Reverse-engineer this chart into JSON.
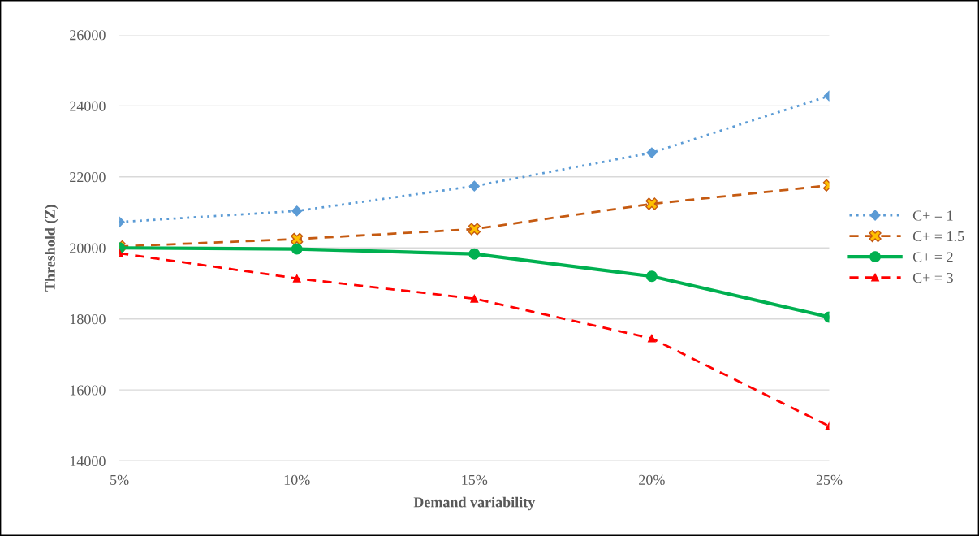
{
  "chart_data": {
    "type": "line",
    "xlabel": "Demand variability",
    "ylabel": "Threshold (Z)",
    "categories": [
      "5%",
      "10%",
      "15%",
      "20%",
      "25%"
    ],
    "series": [
      {
        "name": "C+ = 1",
        "color": "#5b9bd5",
        "marker": "diamond",
        "line_style": "dotted",
        "values": [
          20730,
          21040,
          21740,
          22680,
          24280
        ]
      },
      {
        "name": "C+ = 1.5",
        "color": "#c55a11",
        "marker": "cross",
        "line_style": "dashed",
        "values": [
          20040,
          20250,
          20530,
          21240,
          21760
        ]
      },
      {
        "name": "C+ = 2",
        "color": "#00b050",
        "marker": "circle",
        "line_style": "solid",
        "values": [
          20000,
          19970,
          19830,
          19200,
          18050
        ]
      },
      {
        "name": "C+ = 3",
        "color": "#ff0000",
        "marker": "triangle",
        "line_style": "dashed",
        "values": [
          19850,
          19140,
          18570,
          17450,
          14980
        ]
      }
    ],
    "ylim": [
      14000,
      26000
    ],
    "yticks": [
      14000,
      16000,
      18000,
      20000,
      22000,
      24000,
      26000
    ],
    "grid": "y",
    "legend": "right"
  }
}
